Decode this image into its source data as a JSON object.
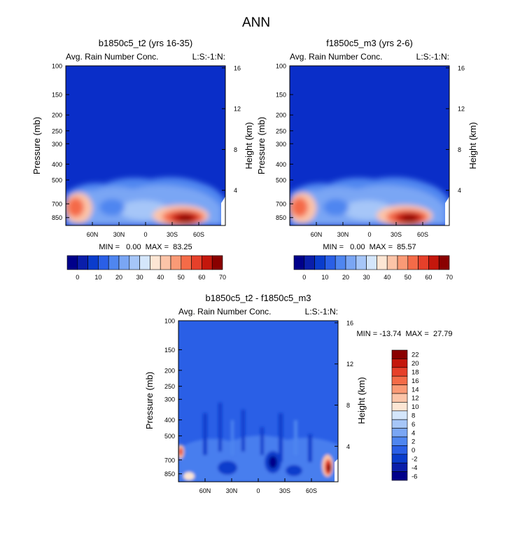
{
  "figure": {
    "title": "ANN"
  },
  "colors": {
    "background_field": "#0a2ec8",
    "cbar_abs": [
      "#00008a",
      "#0a1eaa",
      "#0a3ccc",
      "#2a5fe6",
      "#4f86f0",
      "#7aa6f4",
      "#a6c6f8",
      "#d4e6fb",
      "#fde6d4",
      "#fcc4a8",
      "#fa9a76",
      "#f46b48",
      "#e6402a",
      "#c4170c",
      "#8a0000"
    ],
    "cbar_diff": [
      "#00008a",
      "#0a1eaa",
      "#0a3ccc",
      "#2a5fe6",
      "#4f86f0",
      "#7aa6f4",
      "#a6c6f8",
      "#d4e6fb",
      "#fde6d4",
      "#fcc4a8",
      "#fa9a76",
      "#f46b48",
      "#e6402a",
      "#c4170c",
      "#8a0000"
    ]
  },
  "chart_data": [
    {
      "type": "heatmap",
      "title": "b1850c5_t2 (yrs 16-35)",
      "left_label": "Avg. Rain Number Conc.",
      "right_label": "L:S:-1:N:",
      "ylabel": "Pressure (mb)",
      "y2label": "Height (km)",
      "xticks": [
        "60N",
        "30N",
        "0",
        "30S",
        "60S"
      ],
      "yticks": [
        "100",
        "150",
        "200",
        "250",
        "300",
        "400",
        "500",
        "700",
        "850"
      ],
      "y2ticks": [
        "16",
        "12",
        "8",
        "4"
      ],
      "stats": "MIN =   0.00  MAX =  83.25",
      "colorbar_labels": [
        "0",
        "10",
        "20",
        "30",
        "40",
        "50",
        "60",
        "70"
      ]
    },
    {
      "type": "heatmap",
      "title": "f1850c5_m3 (yrs 2-6)",
      "left_label": "Avg. Rain Number Conc.",
      "right_label": "L:S:-1:N:",
      "ylabel": "Pressure (mb)",
      "y2label": "Height (km)",
      "xticks": [
        "60N",
        "30N",
        "0",
        "30S",
        "60S"
      ],
      "yticks": [
        "100",
        "150",
        "200",
        "250",
        "300",
        "400",
        "500",
        "700",
        "850"
      ],
      "y2ticks": [
        "16",
        "12",
        "8",
        "4"
      ],
      "stats": "MIN =   0.00  MAX =  85.57",
      "colorbar_labels": [
        "0",
        "10",
        "20",
        "30",
        "40",
        "50",
        "60",
        "70"
      ]
    },
    {
      "type": "heatmap",
      "title": "b1850c5_t2 - f1850c5_m3",
      "left_label": "Avg. Rain Number Conc.",
      "right_label": "L:S:-1:N:",
      "ylabel": "Pressure (mb)",
      "y2label": "Height (km)",
      "xticks": [
        "60N",
        "30N",
        "0",
        "30S",
        "60S"
      ],
      "yticks": [
        "100",
        "150",
        "200",
        "250",
        "300",
        "400",
        "500",
        "700",
        "850"
      ],
      "y2ticks": [
        "16",
        "12",
        "8",
        "4"
      ],
      "stats": "MIN = -13.74  MAX =  27.79",
      "colorbar_labels": [
        "22",
        "20",
        "18",
        "16",
        "14",
        "12",
        "10",
        "8",
        "6",
        "4",
        "2",
        "0",
        "-2",
        "-4",
        "-6"
      ]
    }
  ]
}
